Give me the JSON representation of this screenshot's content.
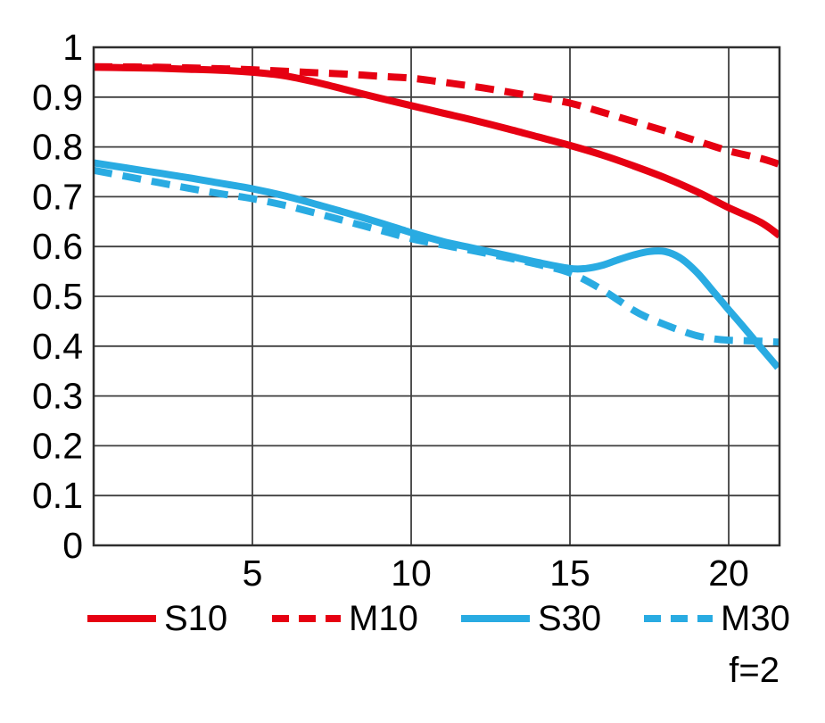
{
  "chart_data": {
    "type": "line",
    "title": "",
    "xlabel": "",
    "ylabel": "",
    "xlim": [
      0,
      21.6
    ],
    "ylim": [
      0,
      1
    ],
    "grid": true,
    "legend_position": "bottom",
    "annotation": "f=2",
    "x_ticks": [
      5,
      10,
      15,
      20
    ],
    "x_tick_labels": [
      "5",
      "10",
      "15",
      "20"
    ],
    "y_ticks": [
      0,
      0.1,
      0.2,
      0.3,
      0.4,
      0.5,
      0.6,
      0.7,
      0.8,
      0.9,
      1
    ],
    "y_tick_labels": [
      "0",
      "0.1",
      "0.2",
      "0.3",
      "0.4",
      "0.5",
      "0.6",
      "0.7",
      "0.8",
      "0.9",
      "1"
    ],
    "colors": {
      "red": "#e60012",
      "blue": "#29abe2",
      "grid": "#3f3f3f",
      "border": "#2e2e2e",
      "text": "#000000"
    },
    "series": [
      {
        "name": "S10",
        "color": "#e60012",
        "dash": false,
        "points": [
          [
            0,
            0.96
          ],
          [
            1,
            0.959
          ],
          [
            2,
            0.958
          ],
          [
            3,
            0.956
          ],
          [
            4,
            0.954
          ],
          [
            5,
            0.95
          ],
          [
            6,
            0.943
          ],
          [
            7,
            0.93
          ],
          [
            8,
            0.914
          ],
          [
            9,
            0.898
          ],
          [
            10,
            0.883
          ],
          [
            11,
            0.868
          ],
          [
            12,
            0.853
          ],
          [
            13,
            0.837
          ],
          [
            14,
            0.82
          ],
          [
            15,
            0.803
          ],
          [
            16,
            0.784
          ],
          [
            17,
            0.762
          ],
          [
            18,
            0.738
          ],
          [
            19,
            0.71
          ],
          [
            20,
            0.678
          ],
          [
            21,
            0.649
          ],
          [
            21.6,
            0.622
          ]
        ]
      },
      {
        "name": "M10",
        "color": "#e60012",
        "dash": true,
        "points": [
          [
            0,
            0.961
          ],
          [
            2,
            0.96
          ],
          [
            4,
            0.957
          ],
          [
            5,
            0.955
          ],
          [
            6,
            0.952
          ],
          [
            7,
            0.949
          ],
          [
            8,
            0.946
          ],
          [
            9,
            0.942
          ],
          [
            10,
            0.938
          ],
          [
            11,
            0.93
          ],
          [
            12,
            0.921
          ],
          [
            13,
            0.911
          ],
          [
            14,
            0.9
          ],
          [
            15,
            0.888
          ],
          [
            16,
            0.87
          ],
          [
            17,
            0.851
          ],
          [
            18,
            0.832
          ],
          [
            19,
            0.812
          ],
          [
            20,
            0.792
          ],
          [
            21,
            0.777
          ],
          [
            21.6,
            0.765
          ]
        ]
      },
      {
        "name": "S30",
        "color": "#29abe2",
        "dash": false,
        "points": [
          [
            0,
            0.768
          ],
          [
            1,
            0.758
          ],
          [
            2,
            0.748
          ],
          [
            3,
            0.738
          ],
          [
            4,
            0.727
          ],
          [
            5,
            0.716
          ],
          [
            6,
            0.702
          ],
          [
            7,
            0.685
          ],
          [
            8,
            0.667
          ],
          [
            9,
            0.648
          ],
          [
            10,
            0.628
          ],
          [
            11,
            0.61
          ],
          [
            12,
            0.596
          ],
          [
            13,
            0.582
          ],
          [
            14,
            0.568
          ],
          [
            15,
            0.556
          ],
          [
            15.5,
            0.556
          ],
          [
            16,
            0.562
          ],
          [
            16.5,
            0.573
          ],
          [
            17,
            0.583
          ],
          [
            17.5,
            0.59
          ],
          [
            18,
            0.59
          ],
          [
            18.5,
            0.576
          ],
          [
            19,
            0.548
          ],
          [
            19.5,
            0.511
          ],
          [
            20,
            0.473
          ],
          [
            20.5,
            0.436
          ],
          [
            21,
            0.398
          ],
          [
            21.55,
            0.357
          ]
        ]
      },
      {
        "name": "M30",
        "color": "#29abe2",
        "dash": true,
        "points": [
          [
            0,
            0.753
          ],
          [
            1,
            0.741
          ],
          [
            2,
            0.729
          ],
          [
            3,
            0.717
          ],
          [
            4,
            0.706
          ],
          [
            5,
            0.696
          ],
          [
            6,
            0.683
          ],
          [
            7,
            0.667
          ],
          [
            8,
            0.65
          ],
          [
            9,
            0.633
          ],
          [
            10,
            0.616
          ],
          [
            11,
            0.603
          ],
          [
            12,
            0.591
          ],
          [
            13,
            0.578
          ],
          [
            14,
            0.564
          ],
          [
            15,
            0.547
          ],
          [
            16,
            0.514
          ],
          [
            17,
            0.472
          ],
          [
            17.5,
            0.456
          ],
          [
            18,
            0.443
          ],
          [
            18.5,
            0.431
          ],
          [
            19,
            0.421
          ],
          [
            19.5,
            0.415
          ],
          [
            20,
            0.412
          ],
          [
            21,
            0.41
          ],
          [
            21.6,
            0.408
          ]
        ]
      }
    ]
  }
}
